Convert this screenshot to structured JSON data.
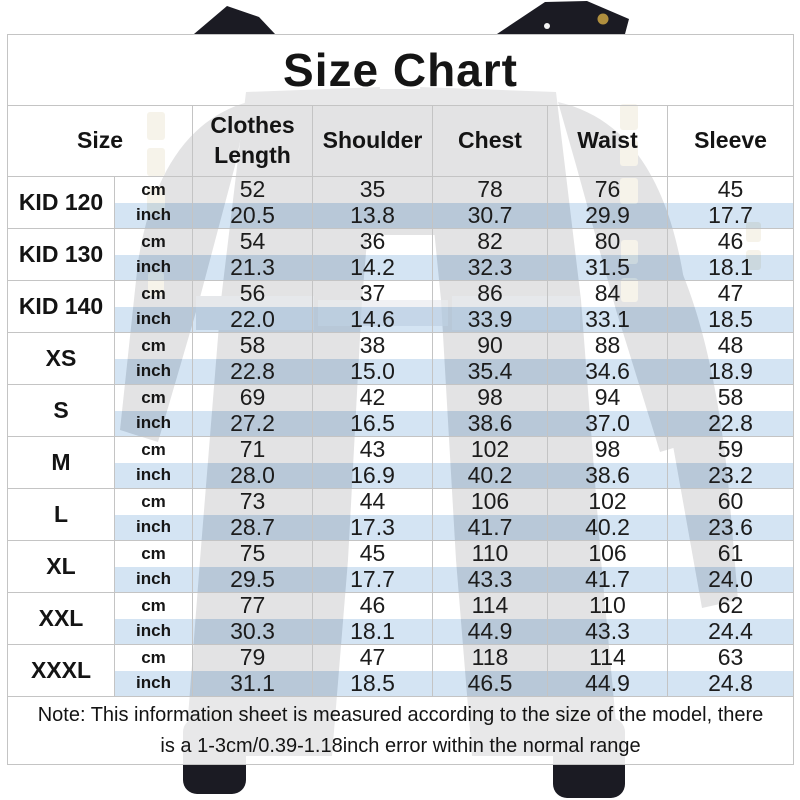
{
  "title": "Size Chart",
  "table": {
    "columns": [
      "Size",
      "Clothes Length",
      "Shoulder",
      "Chest",
      "Waist",
      "Sleeve"
    ],
    "unit_labels": {
      "cm": "cm",
      "inch": "inch"
    },
    "rows": [
      {
        "size": "KID 120",
        "cm": [
          "52",
          "35",
          "78",
          "76",
          "45"
        ],
        "inch": [
          "20.5",
          "13.8",
          "30.7",
          "29.9",
          "17.7"
        ]
      },
      {
        "size": "KID 130",
        "cm": [
          "54",
          "36",
          "82",
          "80",
          "46"
        ],
        "inch": [
          "21.3",
          "14.2",
          "32.3",
          "31.5",
          "18.1"
        ]
      },
      {
        "size": "KID 140",
        "cm": [
          "56",
          "37",
          "86",
          "84",
          "47"
        ],
        "inch": [
          "22.0",
          "14.6",
          "33.9",
          "33.1",
          "18.5"
        ]
      },
      {
        "size": "XS",
        "cm": [
          "58",
          "38",
          "90",
          "88",
          "48"
        ],
        "inch": [
          "22.8",
          "15.0",
          "35.4",
          "34.6",
          "18.9"
        ]
      },
      {
        "size": "S",
        "cm": [
          "69",
          "42",
          "98",
          "94",
          "58"
        ],
        "inch": [
          "27.2",
          "16.5",
          "38.6",
          "37.0",
          "22.8"
        ]
      },
      {
        "size": "M",
        "cm": [
          "71",
          "43",
          "102",
          "98",
          "59"
        ],
        "inch": [
          "28.0",
          "16.9",
          "40.2",
          "38.6",
          "23.2"
        ]
      },
      {
        "size": "L",
        "cm": [
          "73",
          "44",
          "106",
          "102",
          "60"
        ],
        "inch": [
          "28.7",
          "17.3",
          "41.7",
          "40.2",
          "23.6"
        ]
      },
      {
        "size": "XL",
        "cm": [
          "75",
          "45",
          "110",
          "106",
          "61"
        ],
        "inch": [
          "29.5",
          "17.7",
          "43.3",
          "41.7",
          "24.0"
        ]
      },
      {
        "size": "XXL",
        "cm": [
          "77",
          "46",
          "114",
          "110",
          "62"
        ],
        "inch": [
          "30.3",
          "18.1",
          "44.9",
          "43.3",
          "24.4"
        ]
      },
      {
        "size": "XXXL",
        "cm": [
          "79",
          "47",
          "118",
          "114",
          "63"
        ],
        "inch": [
          "31.1",
          "18.5",
          "46.5",
          "44.9",
          "24.8"
        ]
      }
    ],
    "colors": {
      "inch_row_bg": "rgba(206,224,241,0.88)",
      "border": "#c4c4c4",
      "jacket_silhouette": "#1b1b23",
      "gold_accent": "#b49a50"
    }
  },
  "note": "Note: This information sheet is measured according to the size of the model, there is a 1-3cm/0.39-1.18inch error within the normal range"
}
